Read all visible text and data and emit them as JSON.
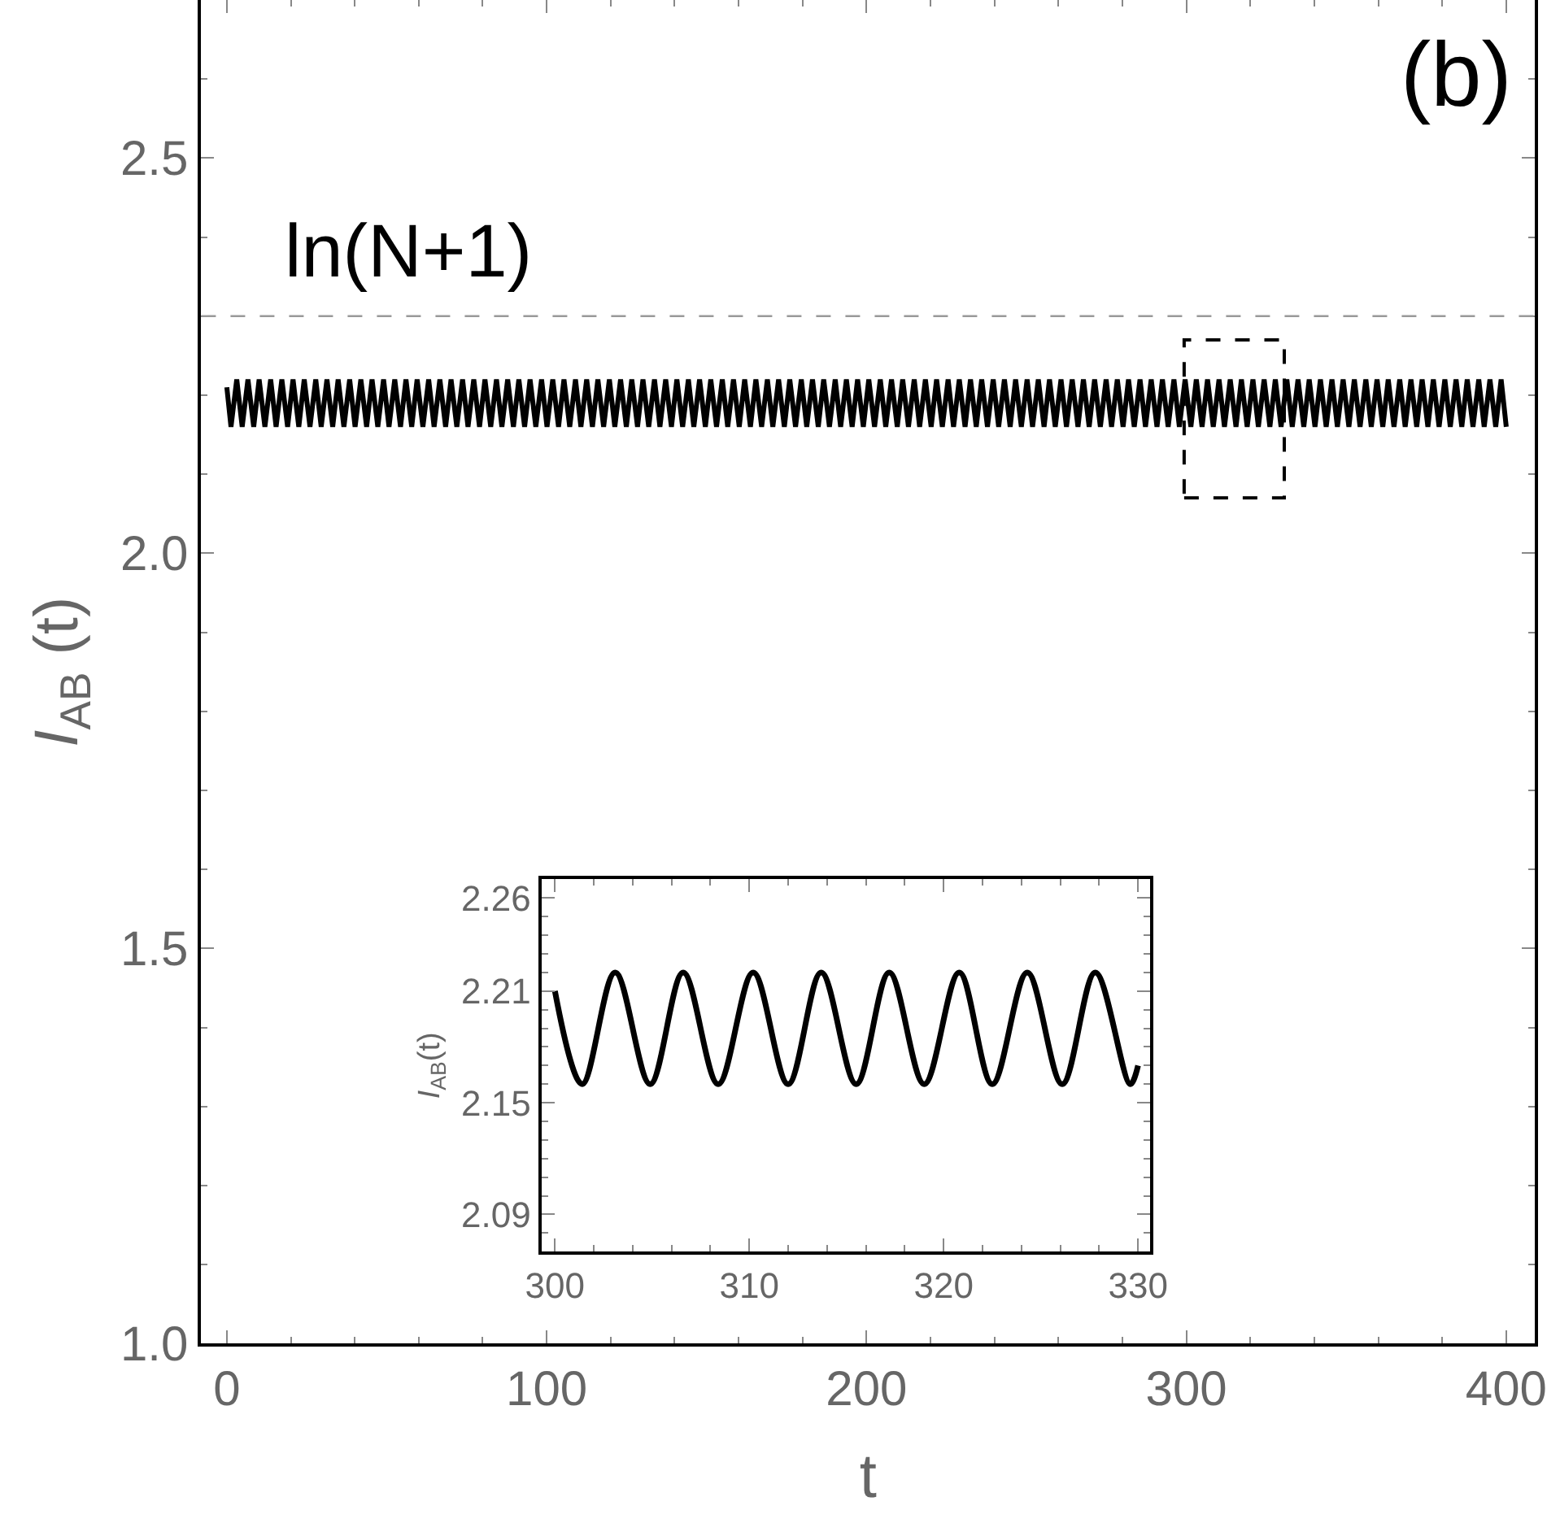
{
  "chart_data": [
    {
      "type": "line",
      "xlabel": "t",
      "ylabel": "I$_{AB}$ (t)",
      "annotations": [
        "(b)"
      ],
      "xlim": [
        -8,
        409
      ],
      "xticks": [
        0,
        100,
        200,
        300,
        400
      ],
      "ylim": [
        1.0,
        2.7
      ],
      "yticks": [
        {
          "value": 1.0,
          "label": "1.0"
        },
        {
          "value": 1.5,
          "label": "1.5"
        },
        {
          "value": 2.0,
          "label": "2.0"
        },
        {
          "value": 2.5,
          "label": "2.5"
        }
      ],
      "marker": "none",
      "line_style": "solid",
      "ref_lines": [
        {
          "axis": "y",
          "value": 2.3,
          "label": "ln(N+1)",
          "color": "#999999",
          "line_style": "dashed"
        }
      ],
      "series": [
        {
          "color": "#000000",
          "x": [
            0,
            1.3,
            3.1,
            4.8,
            6.6,
            8.4,
            10.1,
            11.9,
            13.7,
            15.4,
            17.2,
            19.0,
            20.7,
            22.5,
            24.2,
            26.0,
            27.8,
            29.5,
            31.3,
            33.1,
            34.8,
            36.6,
            38.4,
            40.1,
            41.9,
            43.7,
            45.4,
            47.2,
            49.0,
            50.7,
            52.5,
            54.3,
            56.0,
            57.8,
            59.5,
            61.3,
            63.1,
            64.8,
            66.6,
            68.4,
            70.1,
            71.9,
            73.7,
            75.4,
            77.2,
            79.0,
            80.7,
            82.5,
            84.3,
            86.0,
            87.8,
            89.6,
            91.3,
            93.1,
            94.8,
            96.6,
            98.4,
            100.1,
            101.9,
            103.7,
            105.4,
            107.2,
            109.0,
            110.7,
            112.5,
            114.3,
            116.0,
            117.8,
            119.6,
            121.3,
            123.1,
            124.9,
            126.6,
            128.4,
            130.1,
            131.9,
            133.7,
            135.4,
            137.2,
            139.0,
            140.7,
            142.5,
            144.3,
            146.0,
            147.8,
            149.6,
            151.3,
            153.1,
            154.9,
            156.6,
            158.4,
            160.2,
            161.9,
            163.7,
            165.4,
            167.2,
            169.0,
            170.7,
            172.5,
            174.3,
            176.0,
            177.8,
            179.6,
            181.3,
            183.1,
            184.9,
            186.6,
            188.4,
            190.2,
            191.9,
            193.7,
            195.5,
            197.2,
            199.0,
            200.7,
            202.5,
            204.3,
            206.0,
            207.8,
            209.6,
            211.3,
            213.1,
            214.9,
            216.6,
            218.4,
            220.2,
            221.9,
            223.7,
            225.5,
            227.2,
            229.0,
            230.8,
            232.5,
            234.3,
            236.0,
            237.8,
            239.6,
            241.3,
            243.1,
            244.9,
            246.6,
            248.4,
            250.2,
            251.9,
            253.7,
            255.5,
            257.2,
            259.0,
            260.8,
            262.5,
            264.3,
            266.1,
            267.8,
            269.6,
            271.3,
            273.1,
            274.9,
            276.6,
            278.4,
            280.2,
            281.9,
            283.7,
            285.5,
            287.2,
            289.0,
            290.8,
            292.5,
            294.3,
            296.1,
            297.8,
            299.6,
            301.4,
            303.1,
            304.9,
            306.6,
            308.4,
            310.2,
            311.9,
            313.7,
            315.5,
            317.2,
            319.0,
            320.8,
            322.5,
            324.3,
            326.1,
            327.8,
            329.6,
            331.4,
            333.1,
            334.9,
            336.7,
            338.4,
            340.2,
            341.9,
            343.7,
            345.5,
            347.2,
            349.0,
            350.8,
            352.5,
            354.3,
            356.1,
            357.8,
            359.6,
            361.4,
            363.1,
            364.9,
            366.7,
            368.4,
            370.2,
            372.0,
            373.7,
            375.5,
            377.2,
            379.0,
            380.8,
            382.5,
            384.3,
            386.1,
            387.8,
            389.6,
            391.4,
            393.1,
            394.9,
            396.7,
            398.4,
            400
          ],
          "values": [
            2.21,
            2.16,
            2.22,
            2.16,
            2.22,
            2.16,
            2.22,
            2.16,
            2.22,
            2.16,
            2.22,
            2.16,
            2.22,
            2.16,
            2.22,
            2.16,
            2.22,
            2.16,
            2.22,
            2.16,
            2.22,
            2.16,
            2.22,
            2.16,
            2.22,
            2.16,
            2.22,
            2.16,
            2.22,
            2.16,
            2.22,
            2.16,
            2.22,
            2.16,
            2.22,
            2.16,
            2.22,
            2.16,
            2.22,
            2.16,
            2.22,
            2.16,
            2.22,
            2.16,
            2.22,
            2.16,
            2.22,
            2.16,
            2.22,
            2.16,
            2.22,
            2.16,
            2.22,
            2.16,
            2.22,
            2.16,
            2.22,
            2.16,
            2.22,
            2.16,
            2.22,
            2.16,
            2.22,
            2.16,
            2.22,
            2.16,
            2.22,
            2.16,
            2.22,
            2.16,
            2.22,
            2.16,
            2.22,
            2.16,
            2.22,
            2.16,
            2.22,
            2.16,
            2.22,
            2.16,
            2.22,
            2.16,
            2.22,
            2.16,
            2.22,
            2.16,
            2.22,
            2.16,
            2.22,
            2.16,
            2.22,
            2.16,
            2.22,
            2.16,
            2.22,
            2.16,
            2.22,
            2.16,
            2.22,
            2.16,
            2.22,
            2.16,
            2.22,
            2.16,
            2.22,
            2.16,
            2.22,
            2.16,
            2.22,
            2.16,
            2.22,
            2.16,
            2.22,
            2.16,
            2.22,
            2.16,
            2.22,
            2.16,
            2.22,
            2.16,
            2.22,
            2.16,
            2.22,
            2.16,
            2.22,
            2.16,
            2.22,
            2.16,
            2.22,
            2.16,
            2.22,
            2.16,
            2.22,
            2.16,
            2.22,
            2.16,
            2.22,
            2.16,
            2.22,
            2.16,
            2.22,
            2.16,
            2.22,
            2.16,
            2.22,
            2.16,
            2.22,
            2.16,
            2.22,
            2.16,
            2.22,
            2.16,
            2.22,
            2.16,
            2.22,
            2.16,
            2.22,
            2.16,
            2.22,
            2.16,
            2.22,
            2.16,
            2.22,
            2.16,
            2.22,
            2.16,
            2.22,
            2.16,
            2.22,
            2.16,
            2.22,
            2.16,
            2.22,
            2.16,
            2.22,
            2.16,
            2.22,
            2.16,
            2.22,
            2.16,
            2.22,
            2.16,
            2.22,
            2.16,
            2.22,
            2.16,
            2.22,
            2.16,
            2.22,
            2.16,
            2.22,
            2.16,
            2.22,
            2.16,
            2.22,
            2.16,
            2.22,
            2.16,
            2.22,
            2.16,
            2.22,
            2.16,
            2.22,
            2.16,
            2.22,
            2.16,
            2.22,
            2.16,
            2.22,
            2.16,
            2.22,
            2.16,
            2.22,
            2.16,
            2.22,
            2.16,
            2.22,
            2.16,
            2.22,
            2.16,
            2.22,
            2.16,
            2.22,
            2.16,
            2.22,
            2.16,
            2.22,
            2.16
          ]
        }
      ]
    },
    {
      "type": "line",
      "ylabel": "I$_{AB}$(t)",
      "xlim": [
        299.3,
        330.6
      ],
      "xticks": [
        300,
        310,
        320,
        330
      ],
      "ylim": [
        2.07,
        2.27
      ],
      "yticks": [
        2.09,
        2.15,
        2.21,
        2.26
      ],
      "marker": "none",
      "line_style": "solid",
      "series": [
        {
          "color": "#000000",
          "x": [
            300,
            301.4,
            303.1,
            304.9,
            306.6,
            308.4,
            310.2,
            312.0,
            313.7,
            315.5,
            317.2,
            319.0,
            320.8,
            322.5,
            324.3,
            326.1,
            327.8,
            329.6,
            330
          ],
          "values": [
            2.21,
            2.16,
            2.22,
            2.16,
            2.22,
            2.16,
            2.22,
            2.16,
            2.22,
            2.16,
            2.22,
            2.16,
            2.22,
            2.16,
            2.22,
            2.16,
            2.22,
            2.16,
            2.17
          ]
        }
      ]
    }
  ]
}
